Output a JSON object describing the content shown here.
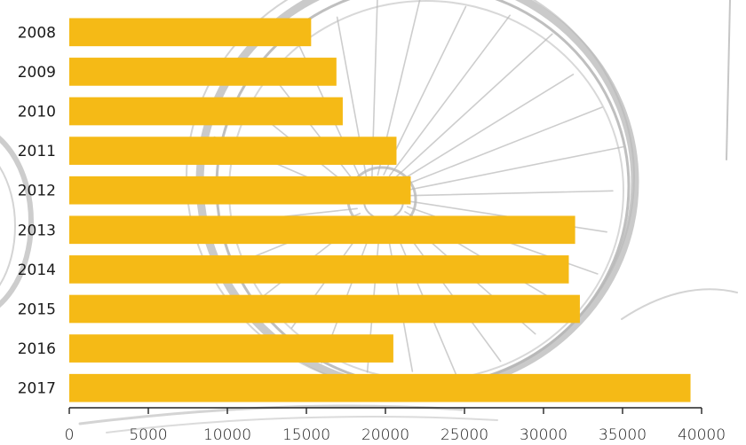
{
  "chart_data": {
    "type": "bar",
    "orientation": "horizontal",
    "categories": [
      "2008",
      "2009",
      "2010",
      "2011",
      "2012",
      "2013",
      "2014",
      "2015",
      "2016",
      "2017"
    ],
    "values": [
      15300,
      16900,
      17300,
      20700,
      21600,
      32000,
      31600,
      32300,
      20500,
      39300
    ],
    "xlim": [
      0,
      40000
    ],
    "x_ticks": [
      "0",
      "5000",
      "10000",
      "15000",
      "20000",
      "25000",
      "30000",
      "35000",
      "40000"
    ],
    "title": "",
    "xlabel": "",
    "ylabel": "",
    "grid": false,
    "bar_color": "#F5BA16",
    "axis_color": "#222222",
    "background_decoration": "bicycle-wheel-sketch"
  }
}
